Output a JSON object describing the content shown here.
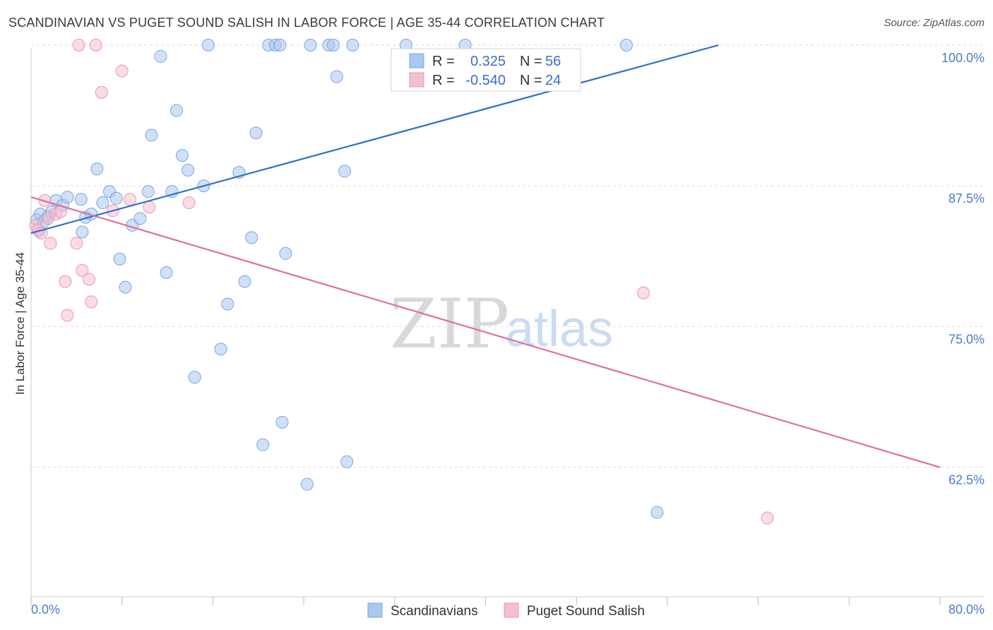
{
  "title": "SCANDINAVIAN VS PUGET SOUND SALISH IN LABOR FORCE | AGE 35-44 CORRELATION CHART",
  "source": "Source: ZipAtlas.com",
  "watermark": {
    "zip": "ZIP",
    "atlas": "atlas"
  },
  "colors": {
    "blue_fill": "#a9c8f0",
    "blue_stroke": "#7aa6e0",
    "blue_line": "#2f72c8",
    "pink_fill": "#f5bfd0",
    "pink_stroke": "#e996b1",
    "pink_line": "#e0709a",
    "tick": "#4a7cc7",
    "grid": "#dddddd"
  },
  "legend": {
    "r_label": "R =",
    "n_label": "N =",
    "series": [
      {
        "r": "0.325",
        "n": "56"
      },
      {
        "r": "-0.540",
        "n": "24"
      }
    ]
  },
  "chart_data": {
    "type": "scatter",
    "title": "SCANDINAVIAN VS PUGET SOUND SALISH IN LABOR FORCE | AGE 35-44 CORRELATION CHART",
    "xlabel": "",
    "ylabel": "In Labor Force | Age 35-44",
    "xlim": [
      0,
      80
    ],
    "ylim": [
      51,
      102
    ],
    "x_tick_labels": [
      "0.0%",
      "80.0%"
    ],
    "y_ticks": [
      62.5,
      75.0,
      87.5,
      100.0
    ],
    "y_tick_labels": [
      "62.5%",
      "75.0%",
      "87.5%",
      "100.0%"
    ],
    "grid": "horizontal dashed",
    "legend_position": "top-center",
    "series": [
      {
        "name": "Scandinavians",
        "color": "#a9c8f0",
        "trend": {
          "x": [
            0,
            60.5
          ],
          "y": [
            83.3,
            100.0
          ]
        },
        "points": [
          [
            0.5,
            84.5
          ],
          [
            0.7,
            83.5
          ],
          [
            0.8,
            85.0
          ],
          [
            1.1,
            84.3
          ],
          [
            1.5,
            84.8
          ],
          [
            1.8,
            85.2
          ],
          [
            2.2,
            86.2
          ],
          [
            2.8,
            85.8
          ],
          [
            3.2,
            86.5
          ],
          [
            4.4,
            86.3
          ],
          [
            4.5,
            83.4
          ],
          [
            4.8,
            84.7
          ],
          [
            5.3,
            85.0
          ],
          [
            5.8,
            89.0
          ],
          [
            6.3,
            86.0
          ],
          [
            6.9,
            87.0
          ],
          [
            7.5,
            86.4
          ],
          [
            7.8,
            81.0
          ],
          [
            8.3,
            78.5
          ],
          [
            8.9,
            84.0
          ],
          [
            9.6,
            84.6
          ],
          [
            10.3,
            87.0
          ],
          [
            10.6,
            92.0
          ],
          [
            11.4,
            99.0
          ],
          [
            11.9,
            79.8
          ],
          [
            12.4,
            87.0
          ],
          [
            12.8,
            94.2
          ],
          [
            13.3,
            90.2
          ],
          [
            13.8,
            88.9
          ],
          [
            14.4,
            70.5
          ],
          [
            15.2,
            87.5
          ],
          [
            15.6,
            100.0
          ],
          [
            16.7,
            73.0
          ],
          [
            17.3,
            77.0
          ],
          [
            18.3,
            88.7
          ],
          [
            18.8,
            79.0
          ],
          [
            19.4,
            82.9
          ],
          [
            19.8,
            92.2
          ],
          [
            20.4,
            64.5
          ],
          [
            20.9,
            100.0
          ],
          [
            21.5,
            100.0
          ],
          [
            21.9,
            100.0
          ],
          [
            22.1,
            66.5
          ],
          [
            22.4,
            81.5
          ],
          [
            24.3,
            61.0
          ],
          [
            24.6,
            100.0
          ],
          [
            26.2,
            100.0
          ],
          [
            26.6,
            100.0
          ],
          [
            26.9,
            97.2
          ],
          [
            27.6,
            88.8
          ],
          [
            27.8,
            63.0
          ],
          [
            28.3,
            100.0
          ],
          [
            33.0,
            100.0
          ],
          [
            38.2,
            100.0
          ],
          [
            52.4,
            100.0
          ],
          [
            55.1,
            58.5
          ]
        ]
      },
      {
        "name": "Puget Sound Salish",
        "color": "#f5bfd0",
        "trend": {
          "x": [
            0,
            80
          ],
          "y": [
            86.5,
            62.5
          ]
        },
        "points": [
          [
            0.4,
            84.0
          ],
          [
            0.6,
            83.6
          ],
          [
            0.9,
            83.3
          ],
          [
            1.2,
            86.2
          ],
          [
            1.5,
            84.6
          ],
          [
            1.7,
            82.4
          ],
          [
            2.2,
            85.0
          ],
          [
            2.6,
            85.2
          ],
          [
            3.0,
            79.0
          ],
          [
            3.2,
            76.0
          ],
          [
            4.0,
            82.4
          ],
          [
            4.2,
            100.0
          ],
          [
            4.5,
            80.0
          ],
          [
            5.1,
            79.2
          ],
          [
            5.3,
            77.2
          ],
          [
            5.7,
            100.0
          ],
          [
            6.2,
            95.8
          ],
          [
            7.2,
            85.3
          ],
          [
            8.0,
            97.7
          ],
          [
            8.7,
            86.3
          ],
          [
            10.4,
            85.6
          ],
          [
            13.9,
            86.0
          ],
          [
            53.9,
            78.0
          ],
          [
            64.8,
            58.0
          ]
        ]
      }
    ]
  }
}
